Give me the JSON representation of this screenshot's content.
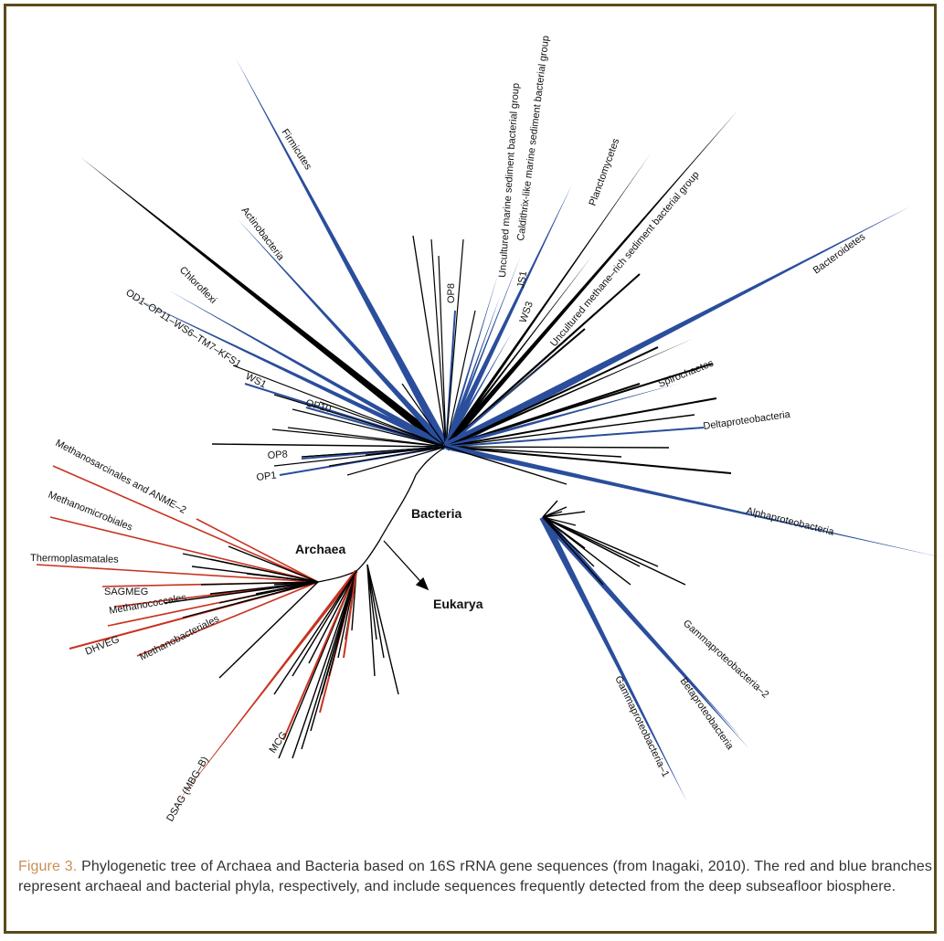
{
  "figure": {
    "label": "Figure 3.",
    "caption": " Phylogenetic tree of Archaea and Bacteria based on 16S rRNA gene sequences (from Inagaki, 2010). The red and blue branches represent archaeal and bacterial phyla, respectively, and include sequences frequently detected from the deep subseafloor biosphere."
  },
  "colors": {
    "archaea": "#c8331f",
    "bacteria": "#2a4e9c",
    "other": "#000000",
    "frame": "#5a4a1c",
    "caption_label": "#c98f55"
  },
  "domains": {
    "bacteria": "Bacteria",
    "archaea": "Archaea",
    "eukarya": "Eukarya"
  },
  "taxa": {
    "firmicutes": "Firmicutes",
    "actinobacteria": "Actinobacteria",
    "chloroflexi": "Chloroflexi",
    "od1": "OD1–OP11–WS6–TM7–KFS1",
    "ws1": "WS1",
    "op10": "OP10",
    "op8_left": "OP8",
    "op1": "OP1",
    "op8_top": "OP8",
    "umsbg": "Uncultured marine sediment bacterial group",
    "caldithrix": "Caldithrix-like marine sediment bacterial group",
    "js1": "JS1",
    "ws3": "WS3",
    "planctomycetes": "Planctomycetes",
    "methane_rich": "Uncultured methane–rich sediment bacterial group",
    "bacteroidetes": "Bacteroidetes",
    "spirochaetes": "Spirochaetes",
    "deltaproteobacteria": "Deltaproteobacteria",
    "alphaproteobacteria": "Alphaproteobacteria",
    "gamma2": "Gammaproteobacteria–2",
    "betaproteobacteria": "Betaproteobacteria",
    "gamma1": "Gammaproteobacteria–1",
    "methanosarcinales": "Methanosarcinales and ANME–2",
    "methanomicrobiales": "Methanomicrobiales",
    "thermoplasmatales": "Thermoplasmatales",
    "sagmeg": "SAGMEG",
    "methanococcales": "Methanococcales",
    "dhveg": "DHVEG",
    "methanobacteriales": "Methanobacteriales",
    "mcg": "MCG",
    "dsag": "DSAG (MBG–B)"
  }
}
